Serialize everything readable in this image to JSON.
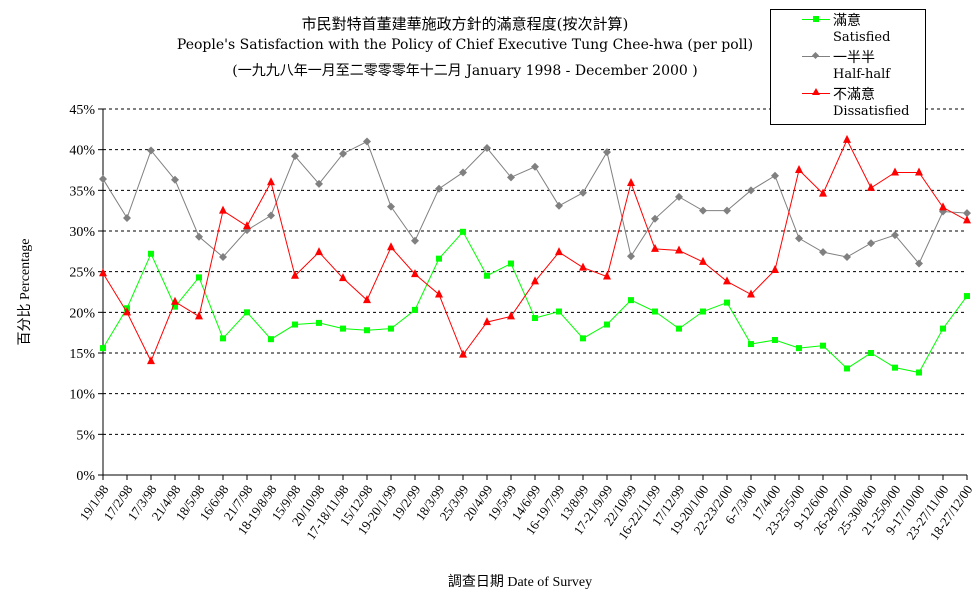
{
  "chart_data": {
    "type": "line",
    "title": "市民對特首董建華施政方針的滿意程度(按次計算)",
    "subtitle": "People's Satisfaction with the Policy of Chief Executive Tung Chee-hwa (per poll)",
    "subtitle2": "(一九九八年一月至二零零零年十二月 January 1998 - December 2000 )",
    "xlabel": "調查日期 Date of Survey",
    "ylabel": "百分比 Percentage",
    "ylim": [
      0,
      45
    ],
    "yticks": [
      "0%",
      "5%",
      "10%",
      "15%",
      "20%",
      "25%",
      "30%",
      "35%",
      "40%",
      "45%"
    ],
    "grid": true,
    "legend_position": "top-right",
    "categories": [
      "19/1/98",
      "17/2/98",
      "17/3/98",
      "21/4/98",
      "18/5/98",
      "16/6/98",
      "21/7/98",
      "18-19/8/98",
      "15/9/98",
      "20/10/98",
      "17-18/11/98",
      "15/12/98",
      "19-20/1/99",
      "19/2/99",
      "18/3/99",
      "25/3/99",
      "20/4/99",
      "19/5/99",
      "14/6/99",
      "16-19/7/99",
      "13/8/99",
      "17-21/9/99",
      "22/10/99",
      "16-22/11/99",
      "17/12/99",
      "19-20/1/00",
      "22-23/2/00",
      "6-7/3/00",
      "17/4/00",
      "23-25/5/00",
      "9-12/6/00",
      "26-28/7/00",
      "25-30/8/00",
      "21-25/9/00",
      "9-17/10/00",
      "23-27/11/00",
      "18-27/12/00"
    ],
    "series": [
      {
        "name": "滿意",
        "name_en": "Satisfied",
        "color": "#00ff00",
        "marker": "square",
        "values": [
          15.6,
          20.5,
          27.2,
          20.7,
          24.3,
          16.8,
          20.0,
          16.7,
          18.5,
          18.7,
          18.0,
          17.8,
          18.0,
          20.3,
          26.6,
          29.9,
          24.5,
          26.0,
          19.3,
          20.1,
          16.8,
          18.5,
          21.5,
          20.1,
          18.0,
          20.1,
          21.2,
          16.1,
          16.6,
          15.6,
          15.9,
          13.1,
          15.0,
          13.2,
          12.6,
          18.0,
          22.0
        ]
      },
      {
        "name": "一半半",
        "name_en": "Half-half",
        "color": "#808080",
        "marker": "diamond",
        "values": [
          36.4,
          31.6,
          39.9,
          36.3,
          29.3,
          26.8,
          30.1,
          31.9,
          39.2,
          35.8,
          39.5,
          41.0,
          33.0,
          28.8,
          35.2,
          37.2,
          40.2,
          36.6,
          37.9,
          33.1,
          34.7,
          39.7,
          26.9,
          31.5,
          34.2,
          32.5,
          32.5,
          35.0,
          36.8,
          29.1,
          27.4,
          26.8,
          28.5,
          29.5,
          26.0,
          32.4,
          32.2
        ]
      },
      {
        "name": "不滿意",
        "name_en": "Dissatisfied",
        "color": "#ff0000",
        "marker": "triangle",
        "values": [
          24.8,
          20.0,
          14.0,
          21.3,
          19.5,
          32.5,
          30.6,
          36.0,
          24.5,
          27.4,
          24.2,
          21.5,
          28.0,
          24.7,
          22.2,
          14.8,
          18.8,
          19.5,
          23.8,
          27.4,
          25.5,
          24.4,
          35.9,
          27.8,
          27.6,
          26.2,
          23.8,
          22.2,
          25.2,
          37.5,
          34.6,
          41.2,
          35.3,
          37.2,
          37.2,
          32.9,
          31.3
        ]
      }
    ]
  }
}
